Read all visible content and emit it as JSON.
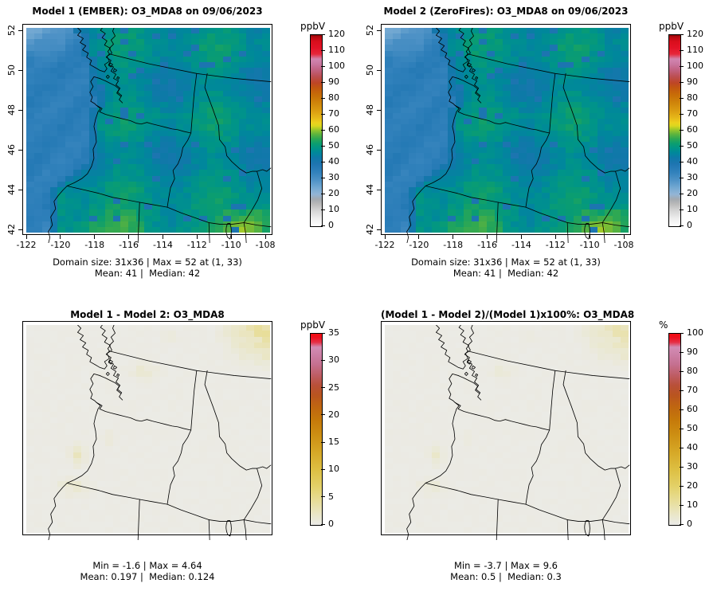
{
  "figure": {
    "background": "#ffffff",
    "line_color": "#000000"
  },
  "panels": [
    {
      "title": "Model 1 (EMBER): O3_MDA8 on 09/06/2023",
      "stats1": "Domain size: 31x36 | Max = 52 at (1, 33)",
      "stats2": "Mean: 41 |  Median: 42",
      "kind": "abs",
      "colorbar": {
        "unit": "ppbV",
        "max": 120,
        "ticks": [
          0,
          10,
          20,
          30,
          40,
          50,
          60,
          70,
          80,
          90,
          100,
          110,
          120
        ],
        "scale": "main"
      },
      "axes": {
        "x": [
          "-122",
          "-120",
          "-118",
          "-116",
          "-114",
          "-112",
          "-110",
          "-108"
        ],
        "y": [
          "52",
          "50",
          "48",
          "46",
          "44",
          "42"
        ]
      }
    },
    {
      "title": "Model 2 (ZeroFires): O3_MDA8 on 09/06/2023",
      "stats1": "Domain size: 31x36 | Max = 52 at (1, 33)",
      "stats2": "Mean: 41 |  Median: 42",
      "kind": "abs",
      "colorbar": {
        "unit": "ppbV",
        "max": 120,
        "ticks": [
          0,
          10,
          20,
          30,
          40,
          50,
          60,
          70,
          80,
          90,
          100,
          110,
          120
        ],
        "scale": "main"
      },
      "axes": {
        "x": [
          "-122",
          "-120",
          "-118",
          "-116",
          "-114",
          "-112",
          "-110",
          "-108"
        ],
        "y": [
          "52",
          "50",
          "48",
          "46",
          "44",
          "42"
        ]
      }
    },
    {
      "title": "Model 1 - Model 2: O3_MDA8",
      "stats1": "Min = -1.6 | Max = 4.64",
      "stats2": "Mean: 0.197 |  Median: 0.124",
      "kind": "diff",
      "colorbar": {
        "unit": "ppbV",
        "max": 35,
        "ticks": [
          0,
          5,
          10,
          15,
          20,
          25,
          30,
          35
        ],
        "scale": "diff"
      },
      "axes": null
    },
    {
      "title": "(Model 1 - Model 2)/(Model 1)x100%: O3_MDA8",
      "stats1": "Min = -3.7 | Max = 9.6",
      "stats2": "Mean: 0.5 |  Median: 0.3",
      "kind": "pct",
      "colorbar": {
        "unit": "%",
        "max": 100,
        "ticks": [
          0,
          10,
          20,
          30,
          40,
          50,
          60,
          70,
          80,
          90,
          100
        ],
        "scale": "diff"
      },
      "axes": null
    }
  ],
  "colormaps": {
    "main": [
      [
        0,
        "#FEFEFE"
      ],
      [
        5,
        "#EDEDED"
      ],
      [
        10,
        "#D4D4D4"
      ],
      [
        14,
        "#B9B9B9"
      ],
      [
        17,
        "#A3A9B0"
      ],
      [
        20,
        "#93B5D6"
      ],
      [
        24,
        "#74A9D2"
      ],
      [
        29,
        "#4E92C6"
      ],
      [
        34,
        "#3181BB"
      ],
      [
        39,
        "#1E75B1"
      ],
      [
        43,
        "#0E79A8"
      ],
      [
        46,
        "#00879C"
      ],
      [
        49,
        "#009587"
      ],
      [
        52,
        "#0C9E6E"
      ],
      [
        55,
        "#2FA852"
      ],
      [
        58,
        "#62B53C"
      ],
      [
        61,
        "#A5CA28"
      ],
      [
        63,
        "#DCD71F"
      ],
      [
        65,
        "#ECD11D"
      ],
      [
        68,
        "#E6B819"
      ],
      [
        72,
        "#DC9F12"
      ],
      [
        77,
        "#D0870B"
      ],
      [
        82,
        "#C86F07"
      ],
      [
        87,
        "#C25710"
      ],
      [
        90,
        "#BE4526"
      ],
      [
        94,
        "#BC4F52"
      ],
      [
        98,
        "#C16180"
      ],
      [
        102,
        "#CA78A2"
      ],
      [
        105,
        "#D185AF"
      ],
      [
        108,
        "#E6283C"
      ],
      [
        112,
        "#E31226"
      ],
      [
        116,
        "#D90E1C"
      ],
      [
        119,
        "#B30A10"
      ],
      [
        120,
        "#800707"
      ]
    ],
    "diff": [
      [
        0,
        "#EBEBE8"
      ],
      [
        0.05,
        "#EAE7CB"
      ],
      [
        0.12,
        "#E8DE9C"
      ],
      [
        0.2,
        "#E3D169"
      ],
      [
        0.29,
        "#DDBF42"
      ],
      [
        0.38,
        "#D6A827"
      ],
      [
        0.47,
        "#CD8F13"
      ],
      [
        0.55,
        "#C5790A"
      ],
      [
        0.62,
        "#BF6511"
      ],
      [
        0.68,
        "#B95420"
      ],
      [
        0.73,
        "#B95038"
      ],
      [
        0.78,
        "#BE5C62"
      ],
      [
        0.84,
        "#C57090"
      ],
      [
        0.89,
        "#CC80A6"
      ],
      [
        0.93,
        "#D28CB4"
      ],
      [
        0.955,
        "#E53046"
      ],
      [
        0.98,
        "#EE1020"
      ],
      [
        1,
        "#F20D12"
      ]
    ]
  },
  "chart_data": [
    {
      "type": "heatmap",
      "title": "Model 1 (EMBER): O3_MDA8 on 09/06/2023",
      "model": "Model 1 (EMBER)",
      "variable": "O3_MDA8",
      "date": "09/06/2023",
      "units": "ppbV",
      "domain_size": "31x36",
      "grid_cols": 31,
      "grid_rows": 36,
      "lon_range": [
        -122,
        -108
      ],
      "lat_range": [
        42,
        52
      ],
      "colorbar_range": [
        0,
        120
      ],
      "stats": {
        "max": 52,
        "max_at": [
          1,
          33
        ],
        "mean": 41,
        "median": 42
      },
      "field_summary": "ocean west band ~30-36 ppbV blue, lighter ~22-28 in NW corner, land ~42-50 teal-green, southern edge ~50-62 green to yellow-green hotspots near bottom corners"
    },
    {
      "type": "heatmap",
      "title": "Model 2 (ZeroFires): O3_MDA8 on 09/06/2023",
      "model": "Model 2 (ZeroFires)",
      "variable": "O3_MDA8",
      "date": "09/06/2023",
      "units": "ppbV",
      "domain_size": "31x36",
      "grid_cols": 31,
      "grid_rows": 36,
      "lon_range": [
        -122,
        -108
      ],
      "lat_range": [
        42,
        52
      ],
      "colorbar_range": [
        0,
        120
      ],
      "stats": {
        "max": 52,
        "max_at": [
          1,
          33
        ],
        "mean": 41,
        "median": 42
      },
      "field_summary": "visually near-identical to Model 1 panel"
    },
    {
      "type": "heatmap",
      "title": "Model 1 - Model 2: O3_MDA8",
      "operation": "difference",
      "units": "ppbV",
      "colorbar_range": [
        0,
        35
      ],
      "stats": {
        "min": -1.6,
        "max": 4.64,
        "mean": 0.197,
        "median": 0.124
      },
      "patches": [
        {
          "cells": [
            24,
            0,
            7,
            8
          ],
          "peak": 4.3,
          "mode": "corner"
        },
        {
          "cells": [
            16,
            1,
            4,
            2
          ],
          "peak": 0.9
        },
        {
          "cells": [
            12,
            6,
            6,
            4
          ],
          "peak": 1.5
        },
        {
          "cells": [
            9,
            18,
            3,
            3
          ],
          "peak": 1.2
        },
        {
          "cells": [
            5,
            20,
            3,
            5
          ],
          "peak": 1.9
        },
        {
          "cells": [
            3,
            26,
            6,
            4
          ],
          "peak": 1.6
        }
      ],
      "field_summary": "near-zero light grey everywhere with faint yellow patches; strongest in NE corner"
    },
    {
      "type": "heatmap",
      "title": "(Model 1 - Model 2)/(Model 1)x100%: O3_MDA8",
      "operation": "percent_difference",
      "units": "%",
      "colorbar_range": [
        0,
        100
      ],
      "stats": {
        "min": -3.7,
        "max": 9.6,
        "mean": 0.5,
        "median": 0.3
      },
      "patches": [
        {
          "cells": [
            24,
            0,
            7,
            8
          ],
          "peak": 9.2,
          "mode": "corner"
        },
        {
          "cells": [
            16,
            1,
            4,
            2
          ],
          "peak": 1.9
        },
        {
          "cells": [
            12,
            6,
            6,
            4
          ],
          "peak": 3.1
        },
        {
          "cells": [
            9,
            18,
            3,
            3
          ],
          "peak": 2.5
        },
        {
          "cells": [
            5,
            20,
            3,
            5
          ],
          "peak": 3.9
        },
        {
          "cells": [
            3,
            26,
            6,
            4
          ],
          "peak": 3.3
        }
      ],
      "field_summary": "same pattern as difference panel, slightly paler"
    }
  ]
}
